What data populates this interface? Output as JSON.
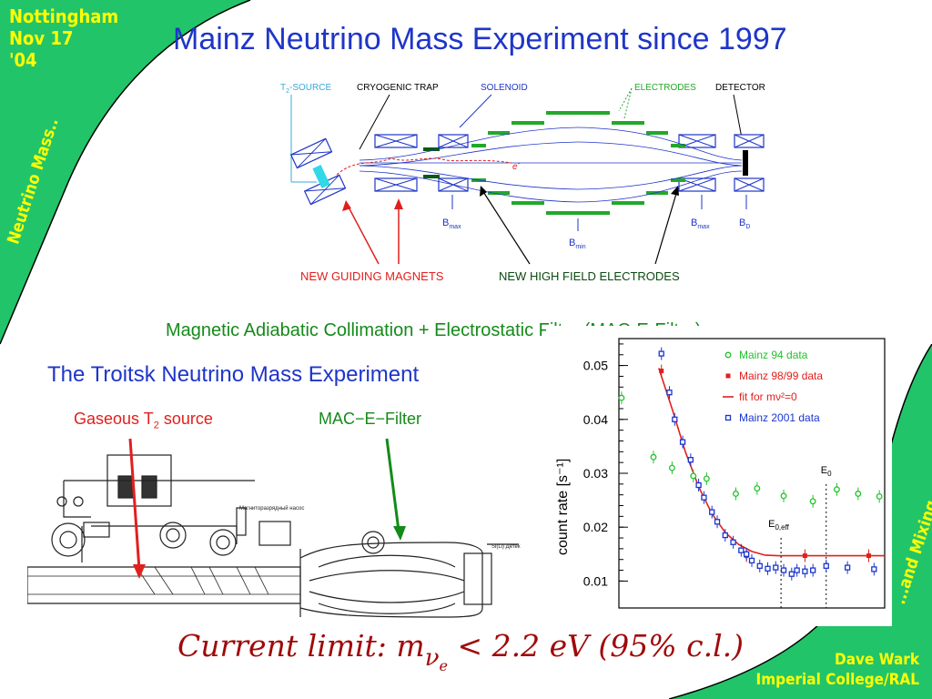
{
  "corner_tl": {
    "line1": "Nottingham",
    "line2": "Nov 17",
    "line3": "'04",
    "vertical": "Neutrino Mass.."
  },
  "corner_br": {
    "vertical": "...and Mixing",
    "author": "Dave Wark",
    "affiliation": "Imperial College/RAL"
  },
  "title": "Mainz Neutrino Mass Experiment since 1997",
  "mainz_diagram": {
    "source_prefix": "T",
    "source_sub": "2",
    "source_suffix": "-SOURCE",
    "cryogenic_trap": "CRYOGENIC TRAP",
    "solenoid": "SOLENOID",
    "electrodes": "ELECTRODES",
    "detector": "DETECTOR",
    "electron": "e",
    "electron_sup": "-",
    "b_max_left": "B",
    "b_max_left_sub": "max",
    "b_min": "B",
    "b_min_sub": "min",
    "b_max_right": "B",
    "b_max_right_sub": "max",
    "b_d": "B",
    "b_d_sub": "D",
    "new_guiding_magnets": "NEW GUIDING MAGNETS",
    "new_high_field": "NEW HIGH FIELD ELECTRODES"
  },
  "mac_e_line": "Magnetic Adiabatic Collimation + Electrostatic Filter (MAC-E-Filter)",
  "troitsk": {
    "title": "The Troitsk Neutrino Mass Experiment",
    "gaseous_prefix": "Gaseous T",
    "gaseous_sub": "2",
    "gaseous_suffix": " source",
    "mac_e": "MAC−E−Filter",
    "pump_label": "Магниторазрядный насос",
    "detector_label": "Si(Li) Детек"
  },
  "chart_data": {
    "type": "scatter",
    "ylabel": "count rate [s⁻¹]",
    "ylim": [
      0.005,
      0.055
    ],
    "yticks": [
      "0.05",
      "0.04",
      "0.03",
      "0.02",
      "0.01"
    ],
    "ytick_values": [
      0.05,
      0.04,
      0.03,
      0.02,
      0.01
    ],
    "xlim": [
      0,
      100
    ],
    "legend": [
      {
        "label": "Mainz 94 data",
        "color": "#22c32a",
        "marker": "circle"
      },
      {
        "label": "Mainz 98/99 data",
        "color": "#e0201e",
        "marker": "square-filled"
      },
      {
        "label": "fit for mν²=0",
        "color": "#e0201e",
        "marker": "line"
      },
      {
        "label": "Mainz 2001 data",
        "color": "#1a35d0",
        "marker": "square"
      }
    ],
    "annotations": {
      "e0": "E",
      "e0_sub": "0",
      "e0eff": "E",
      "e0eff_sub": "0,eff"
    },
    "series": [
      {
        "name": "Mainz 94 data",
        "color": "#22c32a",
        "points": [
          [
            1,
            0.044
          ],
          [
            13,
            0.033
          ],
          [
            20,
            0.031
          ],
          [
            28,
            0.0295
          ],
          [
            33,
            0.029
          ],
          [
            44,
            0.0262
          ],
          [
            52,
            0.0272
          ],
          [
            62,
            0.0258
          ],
          [
            73,
            0.0248
          ],
          [
            82,
            0.027
          ],
          [
            90,
            0.0262
          ],
          [
            98,
            0.0257
          ]
        ]
      },
      {
        "name": "Mainz 98/99 data",
        "color": "#e0201e",
        "points": [
          [
            16,
            0.049
          ],
          [
            48,
            0.0147
          ],
          [
            70,
            0.0147
          ],
          [
            94,
            0.0147
          ]
        ]
      },
      {
        "name": "Mainz 2001 data",
        "color": "#1a35d0",
        "points": [
          [
            16,
            0.0522
          ],
          [
            19,
            0.045
          ],
          [
            21,
            0.04
          ],
          [
            24,
            0.0358
          ],
          [
            27,
            0.0325
          ],
          [
            30,
            0.0278
          ],
          [
            32,
            0.0255
          ],
          [
            35,
            0.0228
          ],
          [
            37,
            0.021
          ],
          [
            40,
            0.0185
          ],
          [
            43,
            0.0172
          ],
          [
            46,
            0.0157
          ],
          [
            48,
            0.015
          ],
          [
            50,
            0.0138
          ],
          [
            53,
            0.0128
          ],
          [
            56,
            0.0123
          ],
          [
            59,
            0.0125
          ],
          [
            62,
            0.012
          ],
          [
            65,
            0.0113
          ],
          [
            67,
            0.012
          ],
          [
            70,
            0.0118
          ],
          [
            73,
            0.012
          ],
          [
            78,
            0.0128
          ],
          [
            86,
            0.0125
          ],
          [
            96,
            0.0122
          ]
        ]
      }
    ],
    "fit": [
      [
        15,
        0.0495
      ],
      [
        20,
        0.042
      ],
      [
        25,
        0.034
      ],
      [
        30,
        0.0275
      ],
      [
        35,
        0.0225
      ],
      [
        40,
        0.019
      ],
      [
        45,
        0.0168
      ],
      [
        50,
        0.0155
      ],
      [
        55,
        0.0148
      ],
      [
        60,
        0.0147
      ],
      [
        70,
        0.0147
      ],
      [
        100,
        0.0147
      ]
    ],
    "e0eff_x": 61,
    "e0_x": 78
  },
  "current_limit": {
    "prefix": "Current limit: m",
    "sub": "ν",
    "subsub": "e",
    "suffix": " < 2.2 eV (95% c.l.)"
  }
}
